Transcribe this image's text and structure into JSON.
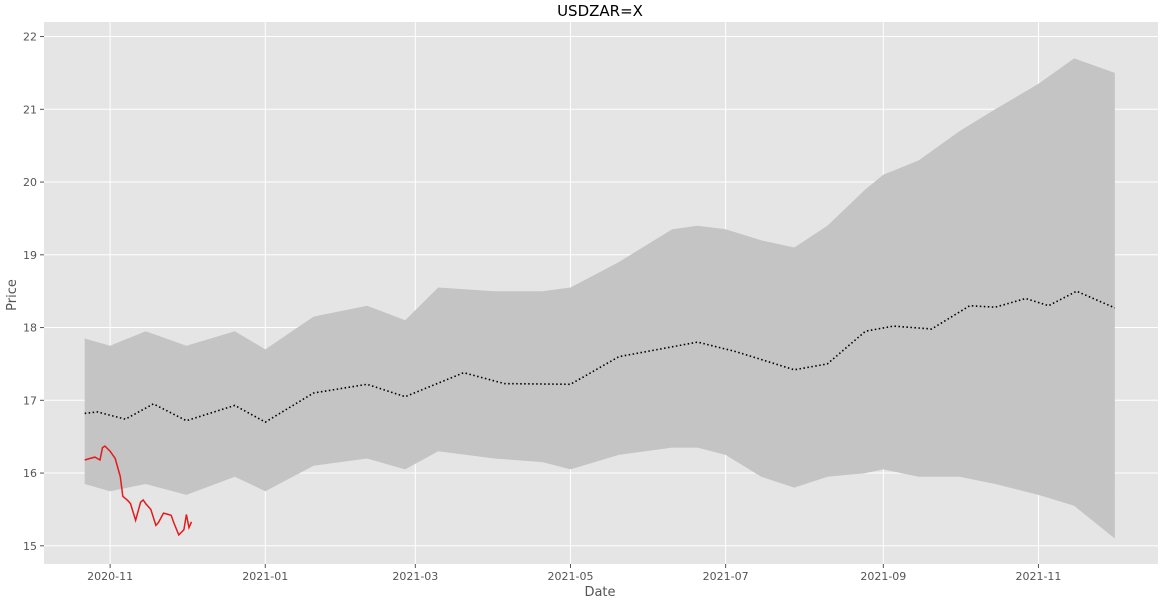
{
  "chart_data": {
    "type": "line",
    "title": "USDZAR=X",
    "xlabel": "Date",
    "ylabel": "Price",
    "xlim": [
      "2020-10-06",
      "2021-12-18"
    ],
    "ylim": [
      14.75,
      22.2
    ],
    "x_ticks": [
      "2020-11-01",
      "2021-01-01",
      "2021-03-01",
      "2021-05-01",
      "2021-07-01",
      "2021-09-01",
      "2021-11-01"
    ],
    "x_tick_labels": [
      "2020-11",
      "2021-01",
      "2021-03",
      "2021-05",
      "2021-07",
      "2021-09",
      "2021-11"
    ],
    "y_ticks": [
      15,
      16,
      17,
      18,
      19,
      20,
      21,
      22
    ],
    "grid": true,
    "colors": {
      "background": "#e5e5e5",
      "grid": "#ffffff",
      "band": "#c4c4c4",
      "forecast": "#000000",
      "actual": "#e41a1c"
    },
    "series": [
      {
        "kind": "band",
        "x": [
          "2020-10-22",
          "2020-11-01",
          "2020-11-15",
          "2020-12-01",
          "2020-12-20",
          "2021-01-01",
          "2021-01-20",
          "2021-02-10",
          "2021-02-25",
          "2021-03-10",
          "2021-04-01",
          "2021-04-20",
          "2021-05-01",
          "2021-05-20",
          "2021-06-10",
          "2021-06-20",
          "2021-07-01",
          "2021-07-15",
          "2021-07-28",
          "2021-08-10",
          "2021-08-25",
          "2021-09-01",
          "2021-09-15",
          "2021-10-01",
          "2021-10-15",
          "2021-11-01",
          "2021-11-15",
          "2021-12-01"
        ],
        "upper": [
          17.85,
          17.75,
          17.95,
          17.75,
          17.95,
          17.7,
          18.15,
          18.3,
          18.1,
          18.55,
          18.5,
          18.5,
          18.55,
          18.9,
          19.35,
          19.4,
          19.35,
          19.2,
          19.1,
          19.4,
          19.9,
          20.1,
          20.3,
          20.7,
          21.0,
          21.35,
          21.7,
          21.5
        ],
        "lower": [
          15.85,
          15.75,
          15.85,
          15.7,
          15.95,
          15.75,
          16.1,
          16.2,
          16.05,
          16.3,
          16.2,
          16.15,
          16.05,
          16.25,
          16.35,
          16.35,
          16.25,
          15.95,
          15.8,
          15.95,
          16.0,
          16.05,
          15.95,
          15.95,
          15.85,
          15.7,
          15.55,
          15.1
        ]
      },
      {
        "kind": "forecast",
        "x": [
          "2020-10-22",
          "2020-10-27",
          "2020-11-07",
          "2020-11-18",
          "2020-12-01",
          "2020-12-20",
          "2021-01-01",
          "2021-01-20",
          "2021-02-10",
          "2021-02-25",
          "2021-03-20",
          "2021-04-05",
          "2021-05-01",
          "2021-05-20",
          "2021-06-20",
          "2021-07-05",
          "2021-07-28",
          "2021-08-10",
          "2021-08-25",
          "2021-09-05",
          "2021-09-20",
          "2021-10-05",
          "2021-10-15",
          "2021-10-27",
          "2021-11-05",
          "2021-11-16",
          "2021-12-01"
        ],
        "y": [
          16.82,
          16.84,
          16.74,
          16.95,
          16.72,
          16.93,
          16.7,
          17.1,
          17.22,
          17.05,
          17.38,
          17.23,
          17.22,
          17.6,
          17.8,
          17.67,
          17.42,
          17.5,
          17.95,
          18.02,
          17.98,
          18.3,
          18.28,
          18.4,
          18.3,
          18.5,
          18.27
        ]
      },
      {
        "kind": "actual",
        "x": [
          "2020-10-22",
          "2020-10-24",
          "2020-10-26",
          "2020-10-28",
          "2020-10-29",
          "2020-10-30",
          "2020-11-01",
          "2020-11-03",
          "2020-11-05",
          "2020-11-06",
          "2020-11-08",
          "2020-11-09",
          "2020-11-11",
          "2020-11-13",
          "2020-11-14",
          "2020-11-15",
          "2020-11-17",
          "2020-11-19",
          "2020-11-20",
          "2020-11-22",
          "2020-11-24",
          "2020-11-25",
          "2020-11-26",
          "2020-11-28",
          "2020-11-30",
          "2020-12-01",
          "2020-12-02",
          "2020-12-03"
        ],
        "y": [
          16.18,
          16.2,
          16.22,
          16.18,
          16.35,
          16.37,
          16.3,
          16.2,
          15.95,
          15.68,
          15.62,
          15.58,
          15.35,
          15.6,
          15.63,
          15.58,
          15.5,
          15.28,
          15.32,
          15.45,
          15.43,
          15.42,
          15.32,
          15.15,
          15.22,
          15.43,
          15.25,
          15.33
        ]
      }
    ]
  }
}
